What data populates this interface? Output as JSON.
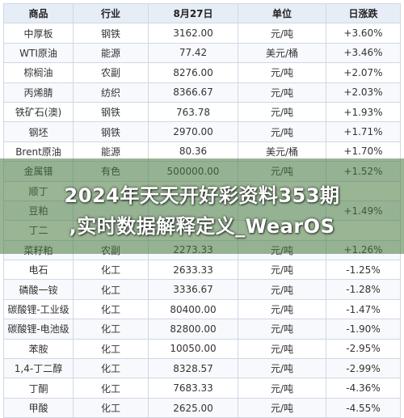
{
  "table": {
    "headers": [
      "商品",
      "行业",
      "8月27日",
      "单位",
      "日涨跌"
    ],
    "rows": [
      {
        "name": "中厚板",
        "industry": "钢铁",
        "price": "3162.00",
        "unit": "元/吨",
        "change": "+3.60%",
        "dir": "up"
      },
      {
        "name": "WTI原油",
        "industry": "能源",
        "price": "77.42",
        "unit": "美元/桶",
        "change": "+3.46%",
        "dir": "up"
      },
      {
        "name": "棕榈油",
        "industry": "农副",
        "price": "8276.00",
        "unit": "元/吨",
        "change": "+2.07%",
        "dir": "up"
      },
      {
        "name": "丙烯腈",
        "industry": "纺织",
        "price": "8366.67",
        "unit": "元/吨",
        "change": "+2.03%",
        "dir": "up"
      },
      {
        "name": "铁矿石(澳)",
        "industry": "钢铁",
        "price": "763.78",
        "unit": "元/吨",
        "change": "+1.93%",
        "dir": "up"
      },
      {
        "name": "钢坯",
        "industry": "钢铁",
        "price": "2970.00",
        "unit": "元/吨",
        "change": "+1.71%",
        "dir": "up"
      },
      {
        "name": "Brent原油",
        "industry": "能源",
        "price": "80.36",
        "unit": "美元/桶",
        "change": "+1.70%",
        "dir": "up"
      },
      {
        "name": "金属镨",
        "industry": "有色",
        "price": "500000.00",
        "unit": "元/吨",
        "change": "+1.52%",
        "dir": "up"
      },
      {
        "name": "顺丁",
        "industry": "",
        "price": "",
        "unit": "",
        "change": "",
        "dir": "up"
      },
      {
        "name": "豆粕",
        "industry": "",
        "price": "",
        "unit": "",
        "change": "+1.49%",
        "dir": "up"
      },
      {
        "name": "丁二",
        "industry": "",
        "price": "",
        "unit": "",
        "change": "",
        "dir": "up"
      },
      {
        "name": "菜籽粕",
        "industry": "农副",
        "price": "2273.33",
        "unit": "元/吨",
        "change": "+1.26%",
        "dir": "up"
      },
      {
        "name": "电石",
        "industry": "化工",
        "price": "2633.33",
        "unit": "元/吨",
        "change": "-1.25%",
        "dir": "down"
      },
      {
        "name": "磷酸一铵",
        "industry": "化工",
        "price": "3336.67",
        "unit": "元/吨",
        "change": "-1.28%",
        "dir": "down"
      },
      {
        "name": "碳酸锂-工业级",
        "industry": "化工",
        "price": "80400.00",
        "unit": "元/吨",
        "change": "-1.47%",
        "dir": "down"
      },
      {
        "name": "碳酸锂-电池级",
        "industry": "化工",
        "price": "82800.00",
        "unit": "元/吨",
        "change": "-1.90%",
        "dir": "down"
      },
      {
        "name": "苯胺",
        "industry": "化工",
        "price": "10050.00",
        "unit": "元/吨",
        "change": "-2.95%",
        "dir": "down"
      },
      {
        "name": "1,4-丁二醇",
        "industry": "化工",
        "price": "8328.57",
        "unit": "元/吨",
        "change": "-2.99%",
        "dir": "down"
      },
      {
        "name": "丁酮",
        "industry": "化工",
        "price": "7683.33",
        "unit": "元/吨",
        "change": "-4.36%",
        "dir": "down"
      },
      {
        "name": "甲酸",
        "industry": "化工",
        "price": "2625.00",
        "unit": "元/吨",
        "change": "-4.55%",
        "dir": "down"
      }
    ]
  },
  "overlay": {
    "line1": "2024年天天开好彩资料353期",
    "line2": ",实时数据解释定义_WearOS"
  },
  "colors": {
    "header_bg": "#e6edf7",
    "up": "#e03131",
    "down": "#1f8a43",
    "overlay": "#46783c"
  }
}
